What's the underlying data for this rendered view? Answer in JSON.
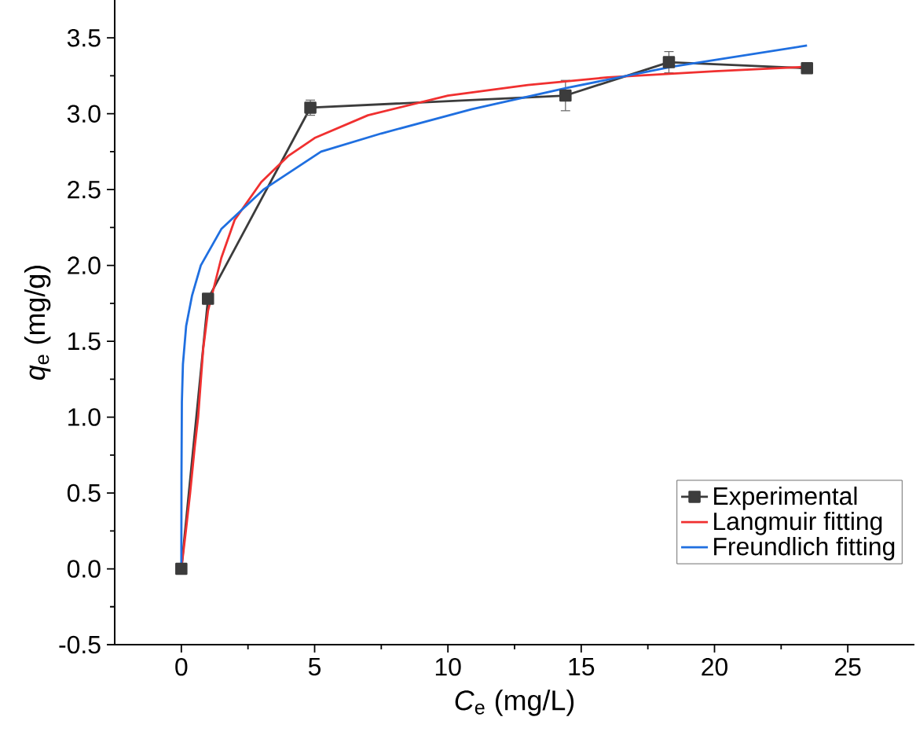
{
  "chart_data": {
    "type": "line",
    "xlabel": "*C*$_{e}$ (mg/L)",
    "ylabel": "*q*$_{e}$ (mg/g)",
    "xlim": [
      -2.5,
      27.5
    ],
    "ylim": [
      -0.5,
      3.75
    ],
    "xticks": [
      0,
      5,
      10,
      15,
      20,
      25
    ],
    "yticks": [
      {
        "value": -0.5,
        "label": "-0.5"
      },
      {
        "value": 0,
        "label": "0.0"
      },
      {
        "value": 0.5,
        "label": "0.5"
      },
      {
        "value": 1,
        "label": "1.0"
      },
      {
        "value": 1.5,
        "label": "1.5"
      },
      {
        "value": 2,
        "label": "2.0"
      },
      {
        "value": 2.5,
        "label": "2.5"
      },
      {
        "value": 3,
        "label": "3.0"
      },
      {
        "value": 3.5,
        "label": "3.5"
      }
    ],
    "legend": "bottom right",
    "series": [
      {
        "name": "Experimental",
        "color": "#3c3c3c",
        "marker": "square",
        "x": [
          0,
          1.0,
          4.84,
          14.41,
          18.29,
          23.47
        ],
        "values": [
          0,
          1.78,
          3.04,
          3.12,
          3.34,
          3.3
        ],
        "errors": [
          null,
          null,
          0.05,
          0.1,
          0.07,
          0.02
        ]
      },
      {
        "name": "Langmuir fitting",
        "color": "#f03030",
        "marker": "none",
        "x": [
          0,
          0.17,
          0.33,
          0.5,
          0.63,
          0.82,
          1.0,
          1.5,
          2,
          3,
          4,
          5,
          7,
          10,
          13,
          16,
          20,
          23.47
        ],
        "values": [
          0,
          0.25,
          0.5,
          0.8,
          1.0,
          1.45,
          1.7,
          2.05,
          2.3,
          2.55,
          2.72,
          2.84,
          2.99,
          3.12,
          3.19,
          3.24,
          3.28,
          3.31
        ]
      },
      {
        "name": "Freundlich fitting",
        "color": "#1f6fe0",
        "marker": "none",
        "x": [
          0,
          0.005,
          0.02,
          0.06,
          0.18,
          0.4,
          0.73,
          1.5,
          3.08,
          5.24,
          7.5,
          10.9,
          14.45,
          18.4,
          23.47
        ],
        "values": [
          0,
          0.6,
          1.1,
          1.35,
          1.6,
          1.8,
          2.0,
          2.24,
          2.5,
          2.75,
          2.87,
          3.03,
          3.17,
          3.31,
          3.45
        ]
      }
    ]
  }
}
